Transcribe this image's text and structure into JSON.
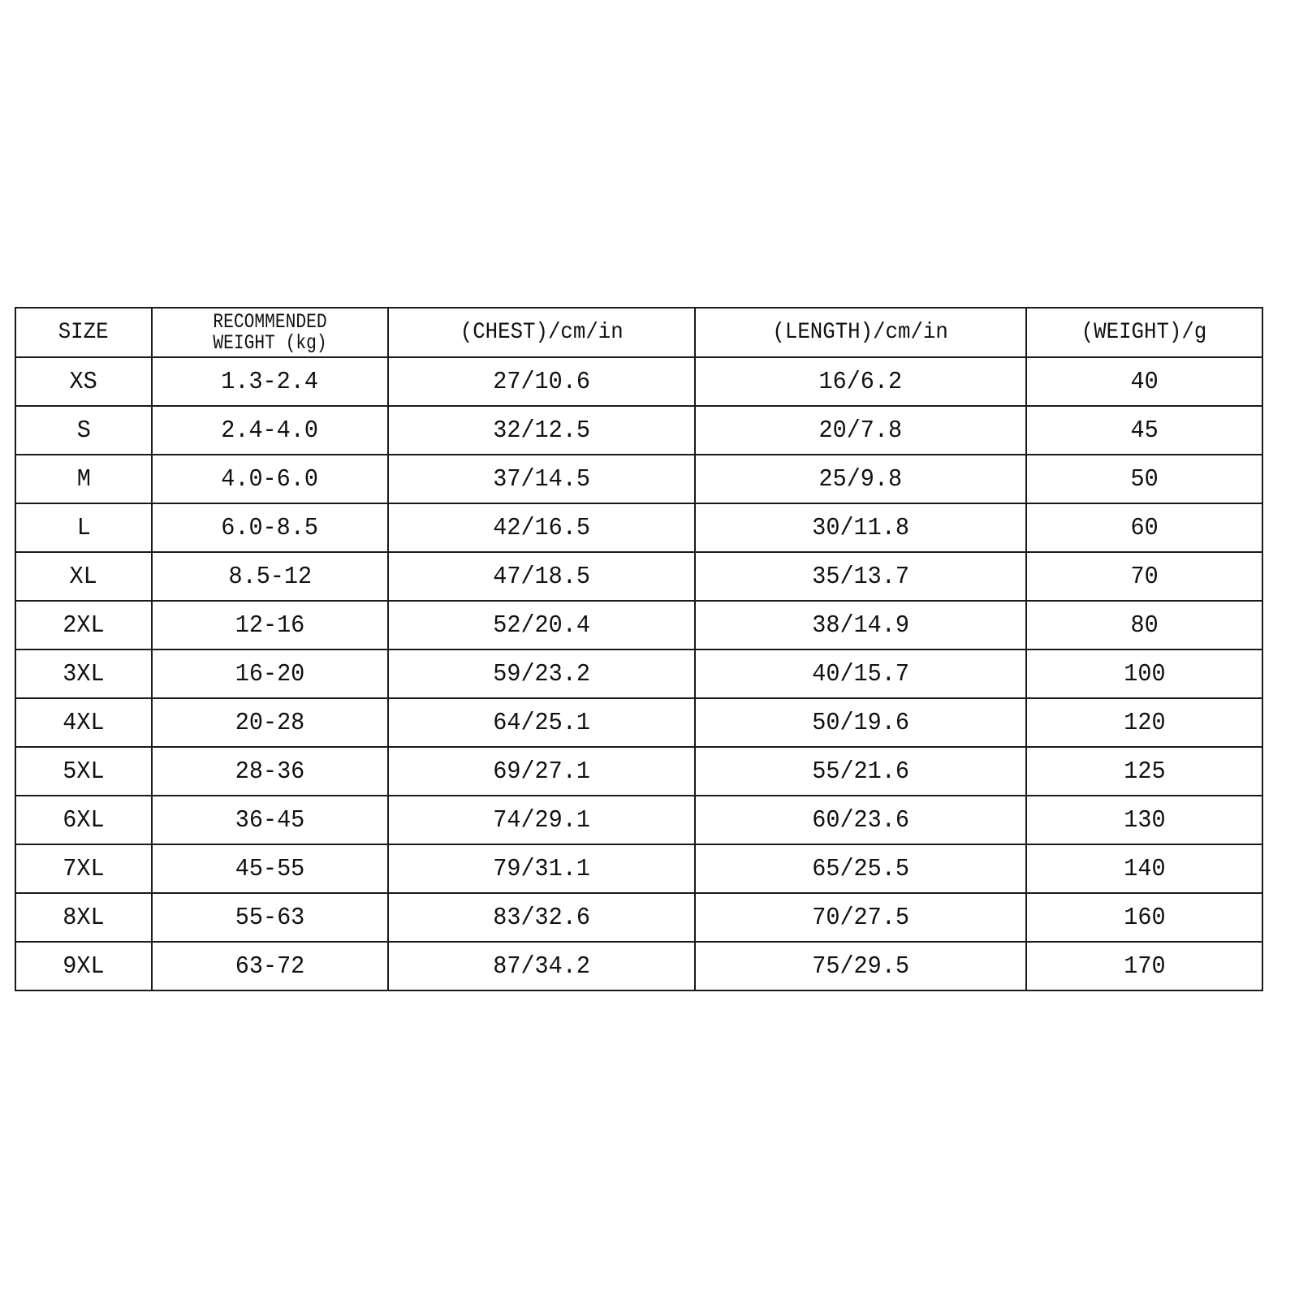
{
  "table": {
    "headers": [
      "SIZE",
      "RECOMMENDED WEIGHT (kg)",
      "(CHEST)/cm/in",
      "(LENGTH)/cm/in",
      "(WEIGHT)/g"
    ],
    "header_weight_line1": "RECOMMENDED",
    "header_weight_line2": "WEIGHT (kg)",
    "rows": [
      [
        "XS",
        "1.3-2.4",
        "27/10.6",
        "16/6.2",
        "40"
      ],
      [
        "S",
        "2.4-4.0",
        "32/12.5",
        "20/7.8",
        "45"
      ],
      [
        "M",
        "4.0-6.0",
        "37/14.5",
        "25/9.8",
        "50"
      ],
      [
        "L",
        "6.0-8.5",
        "42/16.5",
        "30/11.8",
        "60"
      ],
      [
        "XL",
        "8.5-12",
        "47/18.5",
        "35/13.7",
        "70"
      ],
      [
        "2XL",
        "12-16",
        "52/20.4",
        "38/14.9",
        "80"
      ],
      [
        "3XL",
        "16-20",
        "59/23.2",
        "40/15.7",
        "100"
      ],
      [
        "4XL",
        "20-28",
        "64/25.1",
        "50/19.6",
        "120"
      ],
      [
        "5XL",
        "28-36",
        "69/27.1",
        "55/21.6",
        "125"
      ],
      [
        "6XL",
        "36-45",
        "74/29.1",
        "60/23.6",
        "130"
      ],
      [
        "7XL",
        "45-55",
        "79/31.1",
        "65/25.5",
        "140"
      ],
      [
        "8XL",
        "55-63",
        "83/32.6",
        "70/27.5",
        "160"
      ],
      [
        "9XL",
        "63-72",
        "87/34.2",
        "75/29.5",
        "170"
      ]
    ]
  }
}
